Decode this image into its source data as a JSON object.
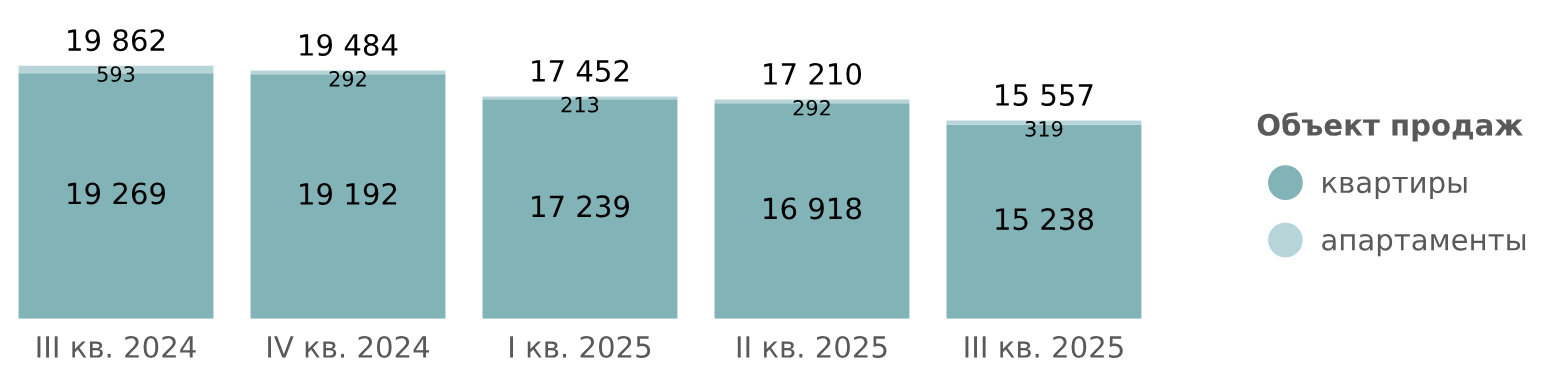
{
  "chart_data": {
    "type": "bar",
    "stacked": true,
    "legend_title": "Объект продаж",
    "legend": "right",
    "categories": [
      "III кв. 2024",
      "IV кв. 2024",
      "I кв. 2025",
      "II кв. 2025",
      "III кв. 2025"
    ],
    "series": [
      {
        "name": "квартиры",
        "color": "#82b3b6",
        "values": [
          19269,
          19192,
          17239,
          16918,
          15238
        ]
      },
      {
        "name": "апартаменты",
        "color": "#b7d5d8",
        "values": [
          593,
          292,
          213,
          292,
          319
        ]
      }
    ],
    "totals": [
      "19 862",
      "19 484",
      "17 452",
      "17 210",
      "15 557"
    ],
    "data_labels": true,
    "tick_labels": "x",
    "grid": false
  }
}
